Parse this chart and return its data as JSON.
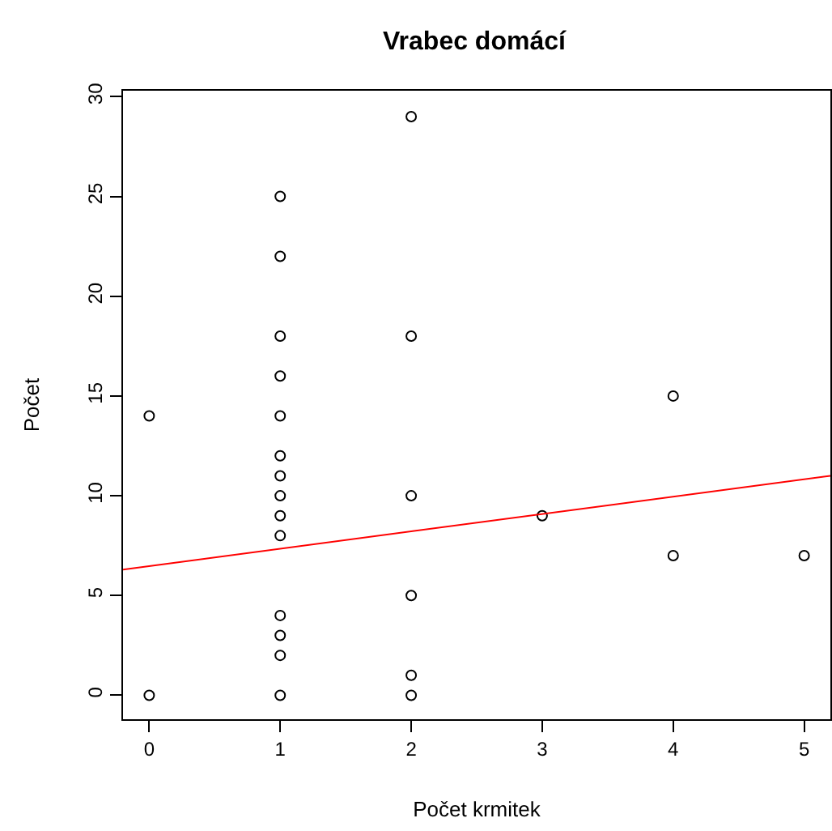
{
  "chart_data": {
    "type": "scatter",
    "title": "Vrabec domácí",
    "xlabel": "Počet krmitek",
    "ylabel": "Počet",
    "xlim": [
      -0.2,
      5.2
    ],
    "ylim": [
      -1.2,
      30.3
    ],
    "xticks": [
      0,
      1,
      2,
      3,
      4,
      5
    ],
    "yticks": [
      0,
      5,
      10,
      15,
      20,
      25,
      30
    ],
    "series": [
      {
        "marker": "circle",
        "color": "#000000",
        "x": [
          0,
          0,
          1,
          1,
          1,
          1,
          1,
          1,
          1,
          1,
          1,
          1,
          1,
          1,
          1,
          1,
          2,
          2,
          2,
          2,
          2,
          2,
          3,
          4,
          4,
          5
        ],
        "values": [
          14,
          0,
          25,
          22,
          18,
          16,
          14,
          12,
          11,
          10,
          9,
          8,
          4,
          3,
          2,
          0,
          29,
          18,
          10,
          5,
          1,
          0,
          9,
          15,
          7,
          7
        ]
      },
      {
        "type": "line",
        "color": "#ff0000",
        "x": [
          -0.2,
          5.2
        ],
        "values": [
          6.3,
          11.0
        ],
        "line_style": "solid",
        "marker": "none"
      }
    ]
  }
}
